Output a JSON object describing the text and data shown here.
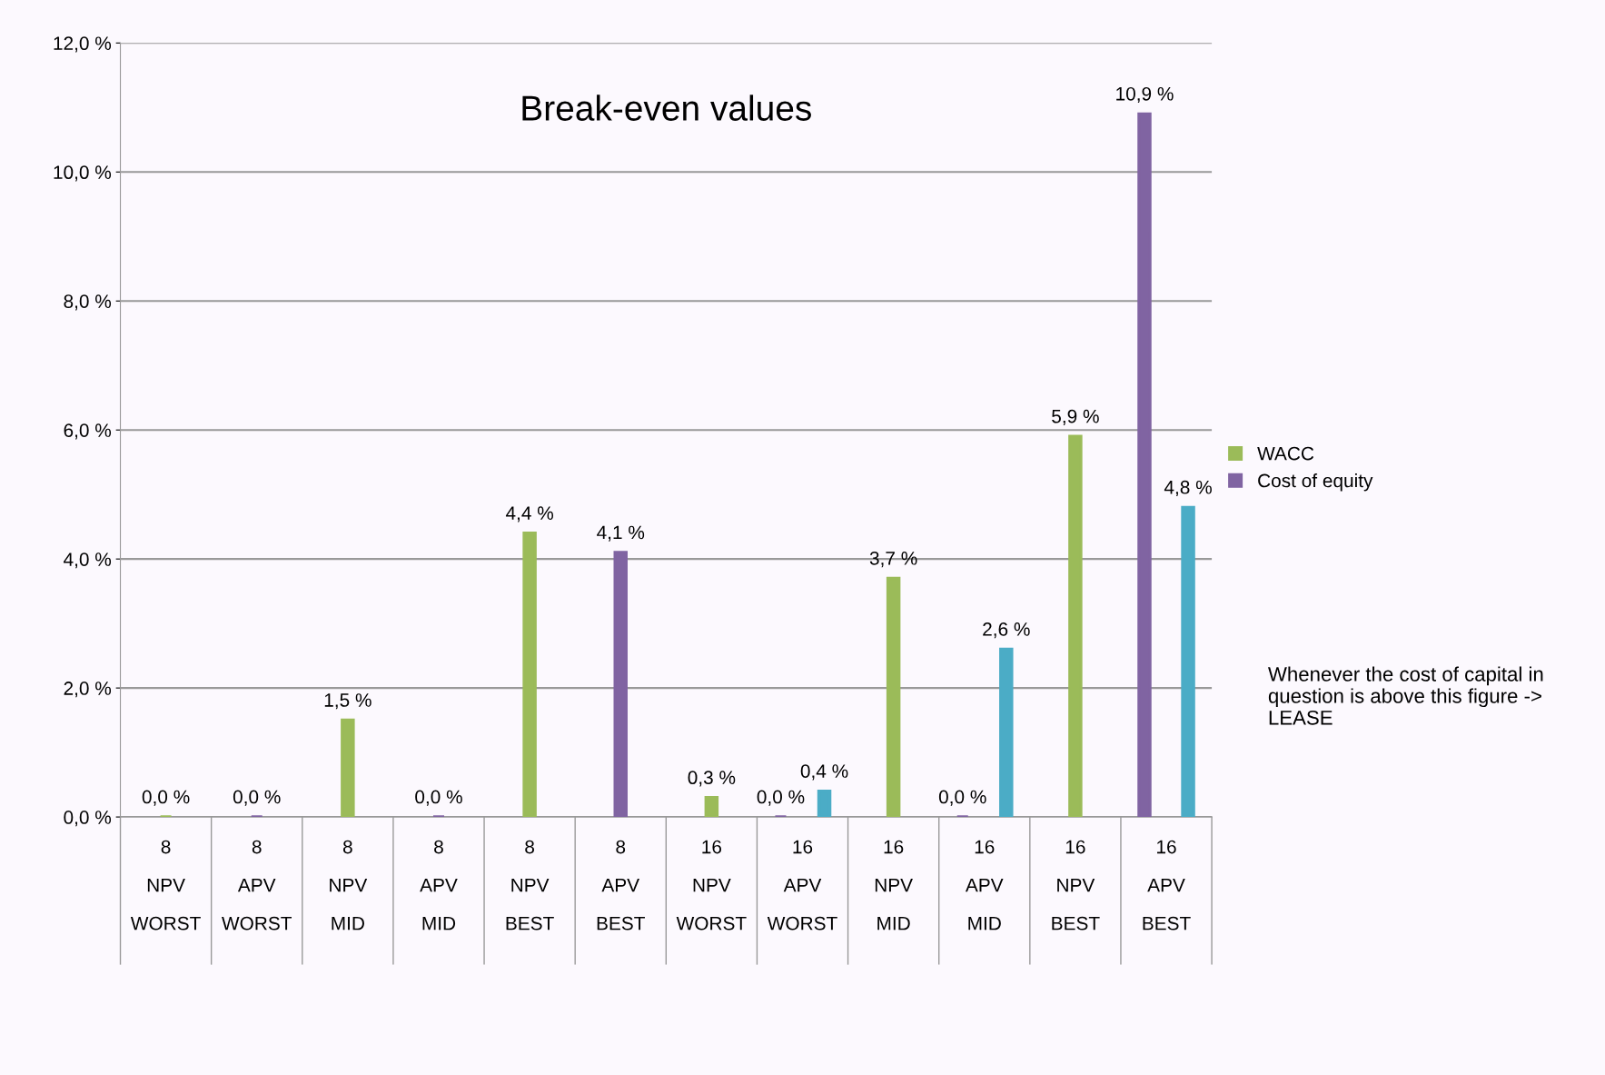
{
  "chart_data": {
    "type": "bar",
    "title": "Break-even values",
    "categories": [
      "8\nNPV\nWORST",
      "8\nAPV\nWORST",
      "8\nNPV\nMID",
      "8\nAPV\nMID",
      "8\nNPV\nBEST",
      "8\nAPV\nBEST",
      "16\nNPV\nWORST",
      "16\nAPV\nWORST",
      "16\nNPV\nMID",
      "16\nAPV\nMID",
      "16\nNPV\nBEST",
      "16\nAPV\nBEST"
    ],
    "series": [
      {
        "name": "WACC",
        "color": "#9bbb59",
        "values": [
          0.0,
          null,
          1.5,
          null,
          4.4,
          null,
          0.3,
          null,
          3.7,
          null,
          5.9,
          null
        ],
        "value_labels": [
          "0,0 %",
          null,
          "1,5 %",
          null,
          "4,4 %",
          null,
          "0,3 %",
          null,
          "3,7 %",
          null,
          "5,9 %",
          null
        ]
      },
      {
        "name": "Cost of equity",
        "color": "#8064a2",
        "values": [
          null,
          0.0,
          null,
          0.0,
          null,
          4.1,
          null,
          0.0,
          null,
          0.0,
          null,
          10.9
        ],
        "value_labels": [
          null,
          "0,0 %",
          null,
          "0,0 %",
          null,
          "4,1 %",
          null,
          "0,0 %",
          null,
          "0,0 %",
          null,
          "10,9 %"
        ]
      },
      {
        "color": "#4bacc6",
        "values": [
          null,
          null,
          null,
          null,
          null,
          null,
          null,
          0.4,
          null,
          2.6,
          null,
          4.8
        ],
        "value_labels": [
          null,
          null,
          null,
          null,
          null,
          null,
          null,
          "0,4 %",
          null,
          "2,6 %",
          null,
          "4,8 %"
        ]
      }
    ],
    "ylim": [
      0,
      12
    ],
    "yticks": [
      {
        "value": 0,
        "label": "0,0 %"
      },
      {
        "value": 2,
        "label": "2,0 %"
      },
      {
        "value": 4,
        "label": "4,0 %"
      },
      {
        "value": 6,
        "label": "6,0 %"
      },
      {
        "value": 8,
        "label": "8,0 %"
      },
      {
        "value": 10,
        "label": "10,0 %"
      },
      {
        "value": 12,
        "label": "12,0 %"
      }
    ],
    "grid": "y",
    "legend": "right",
    "annotations": [
      "Whenever the cost of capital in question is above this figure -> LEASE"
    ]
  }
}
